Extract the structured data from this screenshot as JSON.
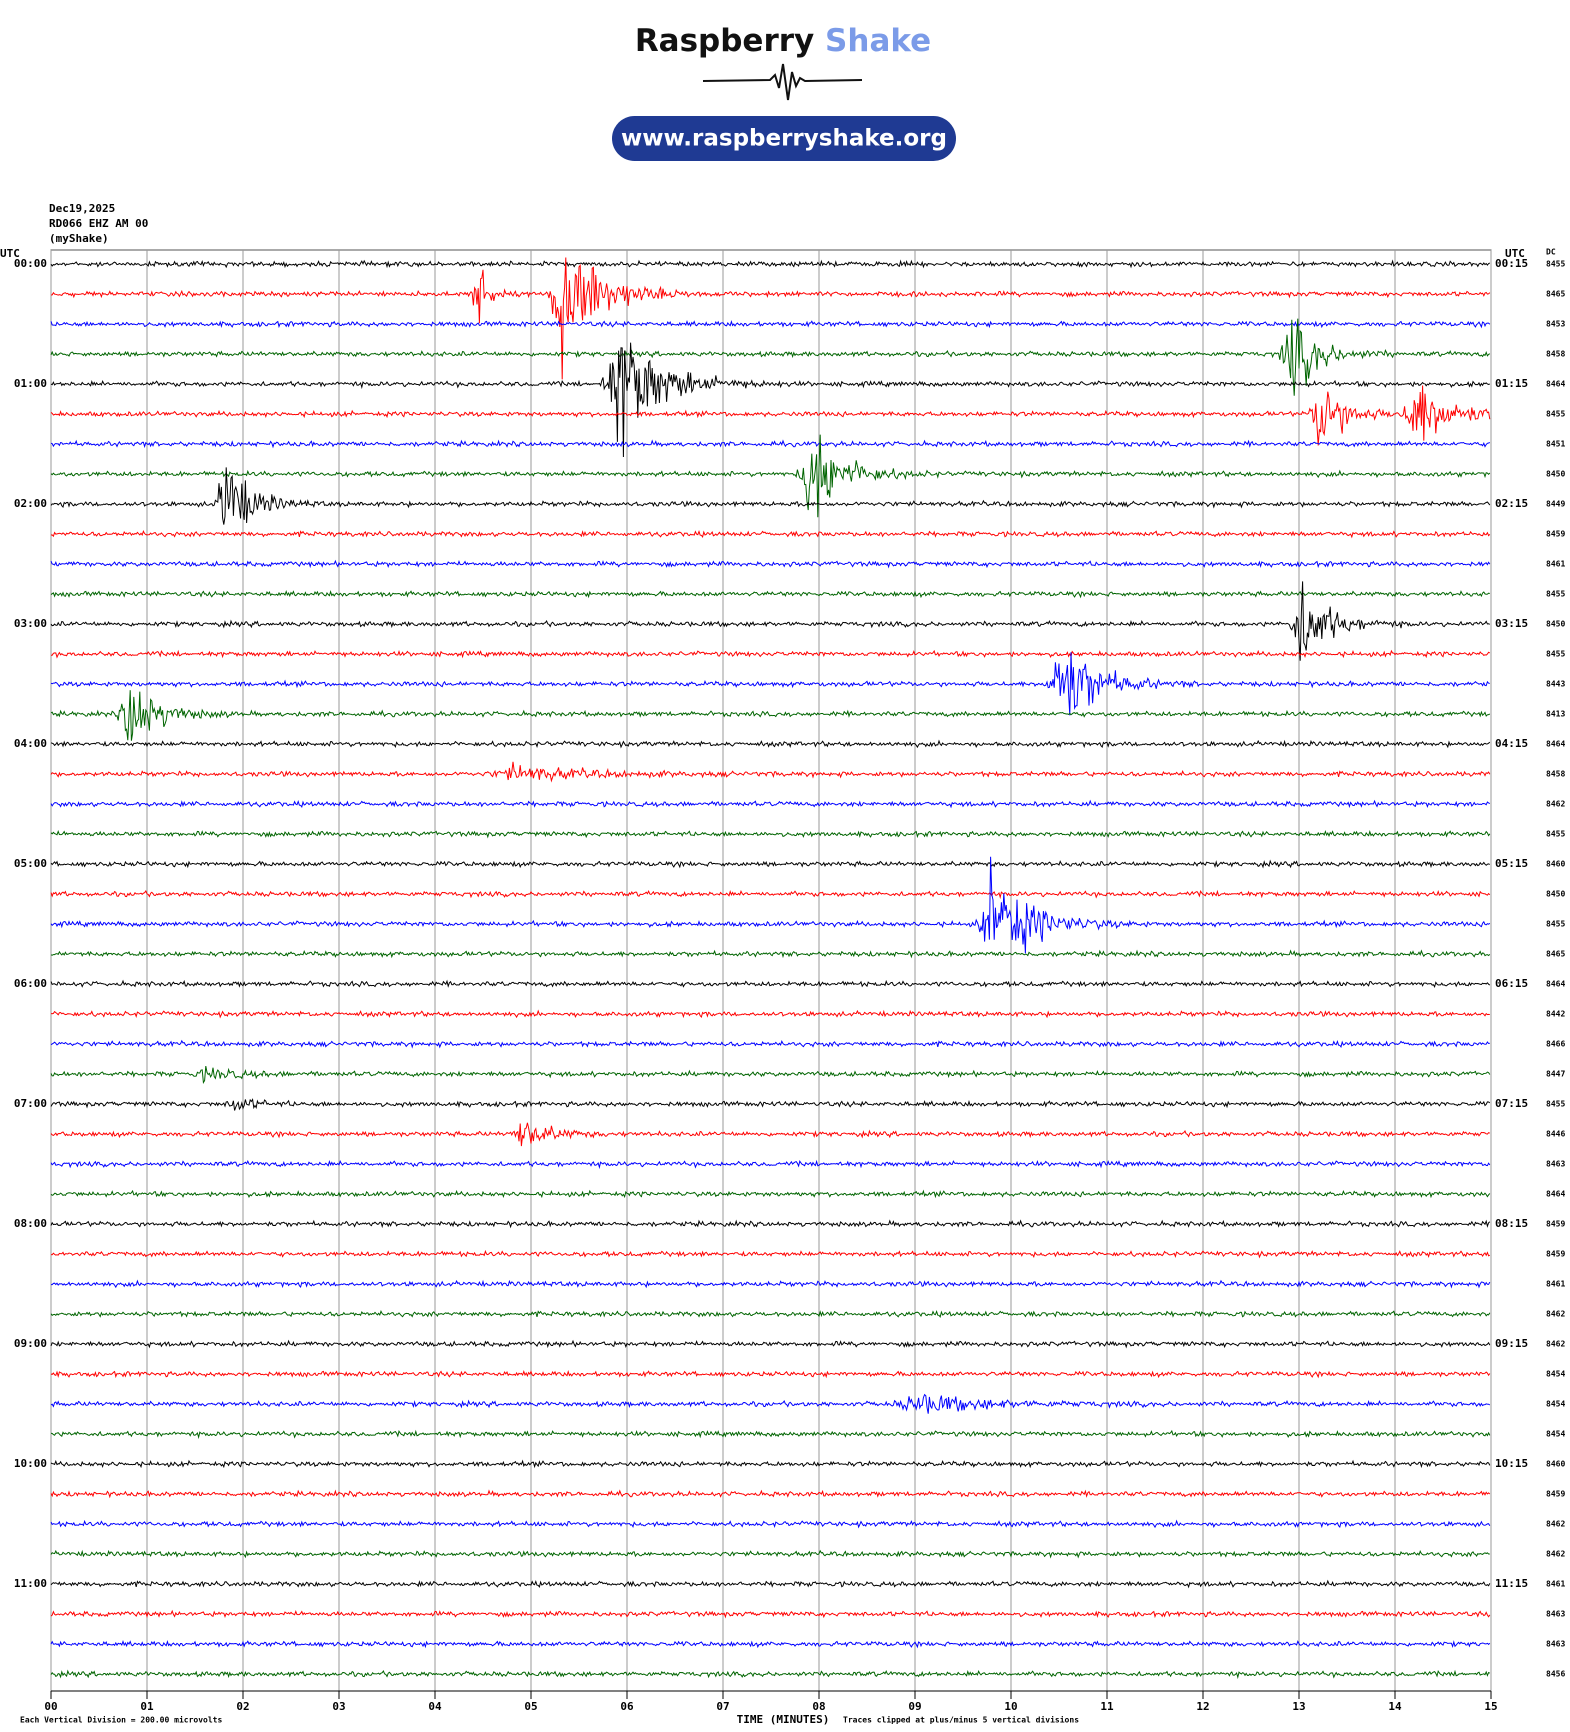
{
  "header": {
    "brand_main": "Raspberry",
    "brand_accent": "Shake",
    "url": "www.raspberryshake.org"
  },
  "chart_data": {
    "type": "helicorder",
    "info": [
      "Dec19,2025",
      "RD066 EHZ AM 00",
      "(myShake)"
    ],
    "left_axis_title": "UTC",
    "right_axis_title": "UTC",
    "dc_title": "DC",
    "colors": [
      "#000000",
      "#ff0000",
      "#0000ff",
      "#006400"
    ],
    "left_labels": [
      "00:00",
      "01:00",
      "02:00",
      "03:00",
      "04:00",
      "05:00",
      "06:00",
      "07:00",
      "08:00",
      "09:00",
      "10:00",
      "11:00"
    ],
    "right_labels": [
      "00:15",
      "01:15",
      "02:15",
      "03:15",
      "04:15",
      "05:15",
      "06:15",
      "07:15",
      "08:15",
      "09:15",
      "10:15",
      "11:15"
    ],
    "dc_values": [
      8455,
      8465,
      8453,
      8458,
      8464,
      8455,
      8451,
      8450,
      8449,
      8459,
      8461,
      8455,
      8450,
      8455,
      8443,
      8413,
      8464,
      8458,
      8462,
      8455,
      8460,
      8450,
      8455,
      8465,
      8464,
      8442,
      8466,
      8447,
      8455,
      8446,
      8463,
      8464,
      8459,
      8459,
      8461,
      8462,
      8462,
      8454,
      8454,
      8454,
      8460,
      8459,
      8462,
      8462,
      8461,
      8463,
      8463,
      8456
    ],
    "x_label": "TIME (MINUTES)",
    "scale_note": "Each Vertical Division =  200.00 microvolts",
    "clip_note": "Traces clipped at plus/minus 5 vertical divisions",
    "xlim": [
      0,
      15
    ],
    "xticks": [
      {
        "value": 0,
        "label": "00"
      },
      {
        "value": 1,
        "label": "01"
      },
      {
        "value": 2,
        "label": "02"
      },
      {
        "value": 3,
        "label": "03"
      },
      {
        "value": 4,
        "label": "04"
      },
      {
        "value": 5,
        "label": "05"
      },
      {
        "value": 6,
        "label": "06"
      },
      {
        "value": 7,
        "label": "07"
      },
      {
        "value": 8,
        "label": "08"
      },
      {
        "value": 9,
        "label": "09"
      },
      {
        "value": 10,
        "label": "10"
      },
      {
        "value": 11,
        "label": "11"
      },
      {
        "value": 12,
        "label": "12"
      },
      {
        "value": 13,
        "label": "13"
      },
      {
        "value": 14,
        "label": "14"
      },
      {
        "value": 15,
        "label": "15"
      }
    ],
    "grid": true
  }
}
